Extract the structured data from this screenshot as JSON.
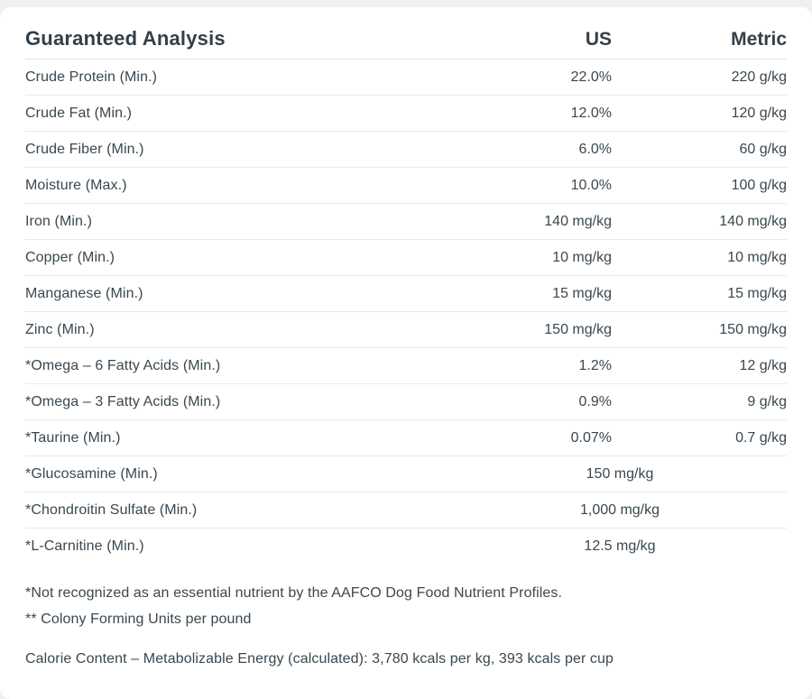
{
  "colors": {
    "page_background": "#eff0f1",
    "card_background": "#ffffff",
    "text": "#3a4750",
    "heading_text": "#333f48",
    "divider": "#e7eaeb",
    "header_divider": "#dfe3e4"
  },
  "table": {
    "title": "Guaranteed Analysis",
    "columns": [
      "US",
      "Metric"
    ],
    "rows": [
      {
        "label": "Crude Protein (Min.)",
        "us": "22.0%",
        "metric": "220 g/kg"
      },
      {
        "label": "Crude Fat (Min.)",
        "us": "12.0%",
        "metric": "120 g/kg"
      },
      {
        "label": "Crude Fiber (Min.)",
        "us": "6.0%",
        "metric": "60 g/kg"
      },
      {
        "label": "Moisture (Max.)",
        "us": "10.0%",
        "metric": "100 g/kg"
      },
      {
        "label": "Iron (Min.)",
        "us": "140 mg/kg",
        "metric": "140 mg/kg"
      },
      {
        "label": "Copper (Min.)",
        "us": "10 mg/kg",
        "metric": "10 mg/kg"
      },
      {
        "label": "Manganese (Min.)",
        "us": "15 mg/kg",
        "metric": "15 mg/kg"
      },
      {
        "label": "Zinc (Min.)",
        "us": "150 mg/kg",
        "metric": "150 mg/kg"
      },
      {
        "label": "*Omega – 6 Fatty Acids (Min.)",
        "us": "1.2%",
        "metric": "12 g/kg"
      },
      {
        "label": "*Omega – 3 Fatty Acids (Min.)",
        "us": "0.9%",
        "metric": "9 g/kg"
      },
      {
        "label": "*Taurine (Min.)",
        "us": "0.07%",
        "metric": "0.7 g/kg"
      },
      {
        "label": "*Glucosamine (Min.)",
        "span": "150 mg/kg"
      },
      {
        "label": "*Chondroitin Sulfate (Min.)",
        "span": "1,000 mg/kg"
      },
      {
        "label": "*L-Carnitine (Min.)",
        "span": "12.5 mg/kg"
      }
    ]
  },
  "footnotes": [
    "*Not recognized as an essential nutrient by the AAFCO Dog Food Nutrient Profiles.",
    "** Colony Forming Units per pound"
  ],
  "calorie_content": "Calorie Content – Metabolizable Energy (calculated): 3,780 kcals per kg, 393 kcals per cup"
}
